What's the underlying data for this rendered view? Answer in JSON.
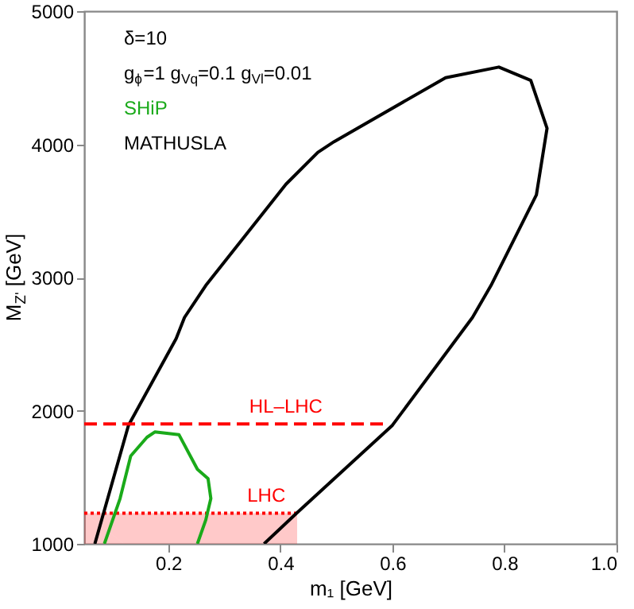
{
  "chart_data": {
    "type": "line",
    "line_style": "solid",
    "xlabel": "m₁ [GeV]",
    "ylabel": "M$_{Z'}$ [GeV]",
    "annotations": [
      "δ=10",
      "g$_{ϕ}$=1 g$_{Vq}$=0.1 g$_{Vl}$=0.01",
      {
        "text": "HL–LHC",
        "x": 0.41,
        "y": 1900
      },
      {
        "text": "LHC",
        "x": 0.375,
        "y": 1230
      }
    ],
    "xlim": [
      0.05,
      1.0
    ],
    "xticks": [
      0.2,
      0.4,
      0.6,
      0.8,
      {
        "value": 1.0,
        "label": "1.0"
      }
    ],
    "ylim": [
      1000,
      5000
    ],
    "yticks": [
      1000,
      2000,
      3000,
      4000,
      5000
    ],
    "grid": false,
    "legend": "top left",
    "series": [
      {
        "type": "area",
        "color": "#ff0000",
        "line_style": "dotted",
        "x": [
          0.05,
          0.43
        ],
        "values": [
          1230,
          1230
        ]
      },
      {
        "name": "SHiP",
        "color": "#1aaa1a",
        "x": [
          0.086,
          0.114,
          0.133,
          0.162,
          0.176,
          0.219,
          0.252,
          0.271,
          0.276,
          0.267,
          0.252
        ],
        "values": [
          1000,
          1340,
          1660,
          1800,
          1840,
          1820,
          1560,
          1490,
          1340,
          1180,
          1000
        ]
      },
      {
        "name": "MATHUSLA",
        "color": "#000000",
        "x": [
          0.069,
          0.129,
          0.214,
          0.229,
          0.267,
          0.41,
          0.467,
          0.496,
          0.695,
          0.79,
          0.847,
          0.876,
          0.857,
          0.776,
          0.743,
          0.6,
          0.429,
          0.371
        ],
        "values": [
          1000,
          1890,
          2540,
          2700,
          2940,
          3700,
          3940,
          4020,
          4500,
          4580,
          4480,
          4120,
          3620,
          2940,
          2700,
          1890,
          1230,
          1000
        ]
      },
      {
        "color": "#ff0000",
        "line_style": "dashed",
        "x": [
          0.05,
          0.59
        ],
        "values": [
          1900,
          1900
        ]
      }
    ]
  }
}
